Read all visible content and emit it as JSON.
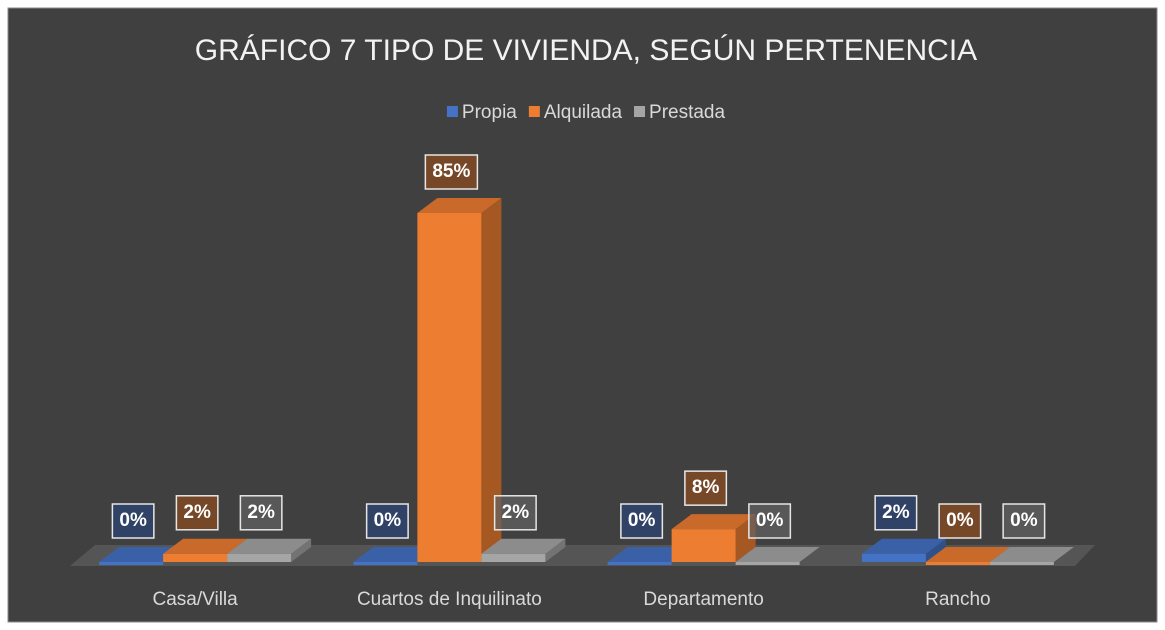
{
  "chart_data": {
    "type": "bar3d",
    "title": "GRÁFICO 7 TIPO DE VIVIENDA, SEGÚN PERTENENCIA",
    "categories": [
      "Casa/Villa",
      "Cuartos de Inquilinato",
      "Departamento",
      "Rancho"
    ],
    "series": [
      {
        "name": "Propia",
        "color": "#4472c4",
        "values": [
          0,
          0,
          0,
          2
        ],
        "value_labels": [
          "0%",
          "0%",
          "0%",
          "2%"
        ]
      },
      {
        "name": "Alquilada",
        "color": "#ed7d31",
        "values": [
          2,
          85,
          8,
          0
        ],
        "value_labels": [
          "2%",
          "85%",
          "8%",
          "0%"
        ]
      },
      {
        "name": "Prestada",
        "color": "#a5a5a5",
        "values": [
          2,
          2,
          0,
          0
        ],
        "value_labels": [
          "2%",
          "2%",
          "0%",
          "0%"
        ]
      }
    ],
    "legend": "top"
  }
}
